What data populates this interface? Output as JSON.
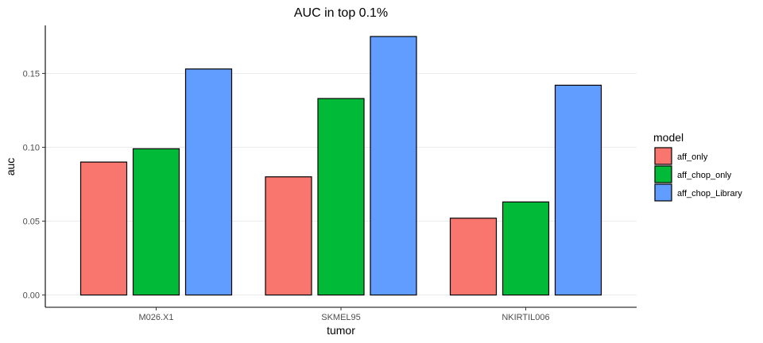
{
  "chart_data": {
    "type": "bar",
    "title": "AUC in top 0.1%",
    "xlabel": "tumor",
    "ylabel": "auc",
    "categories": [
      "M026.X1",
      "SKMEL95",
      "NKIRTIL006"
    ],
    "series": [
      {
        "name": "aff_only",
        "color": "#F8766D",
        "values": [
          0.09,
          0.08,
          0.052
        ]
      },
      {
        "name": "aff_chop_only",
        "color": "#00BA38",
        "values": [
          0.099,
          0.133,
          0.063
        ]
      },
      {
        "name": "aff_chop_Library",
        "color": "#619CFF",
        "values": [
          0.153,
          0.175,
          0.142
        ]
      }
    ],
    "ylim": [
      -0.0083,
      0.1825
    ],
    "yticks": [
      0.0,
      0.05,
      0.1,
      0.15
    ],
    "ytick_labels": [
      "0.00",
      "0.05",
      "0.10",
      "0.15"
    ],
    "grid": "horizontal-major",
    "legend": {
      "title": "model",
      "position": "right"
    }
  }
}
